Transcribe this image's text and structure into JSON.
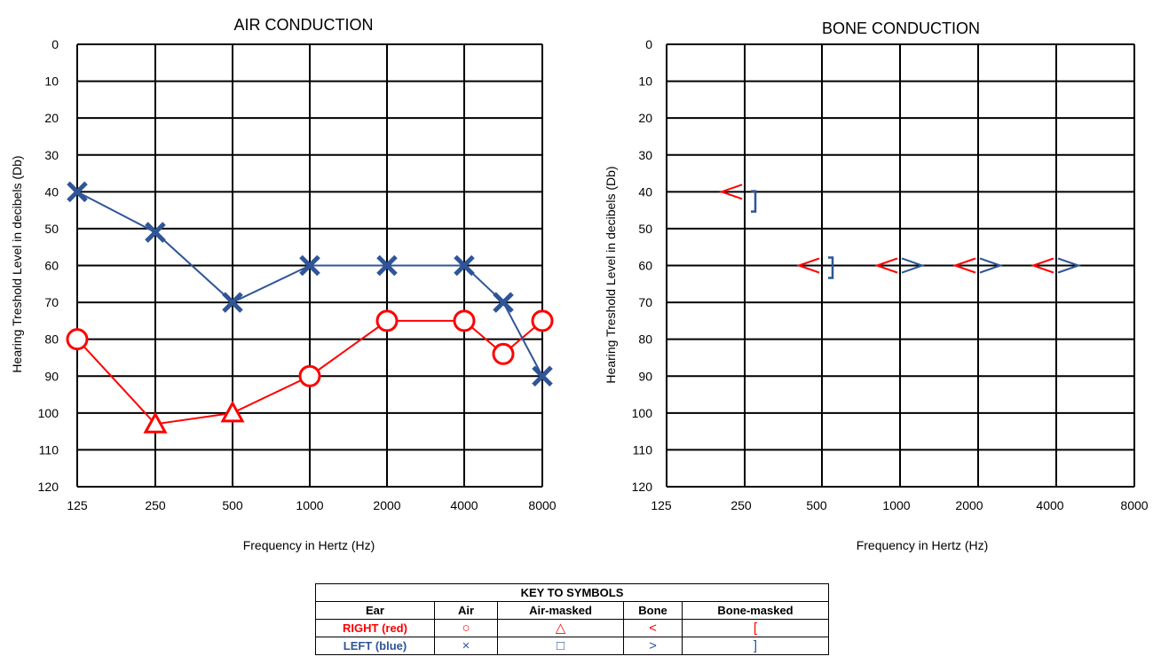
{
  "chart_data": [
    {
      "type": "line",
      "title": "AIR CONDUCTION",
      "xlabel": "Frequency in Hertz (Hz)",
      "ylabel": "Hearing Treshold Level in decibels (Db)",
      "x_categories": [
        "125",
        "250",
        "500",
        "1000",
        "2000",
        "4000",
        "8000"
      ],
      "ylim": [
        0,
        120
      ],
      "y_inverted": true,
      "y_ticks": [
        "0",
        "10",
        "20",
        "30",
        "40",
        "50",
        "60",
        "70",
        "80",
        "90",
        "100",
        "110",
        "120"
      ],
      "grid": true,
      "series": [
        {
          "color": "#ff0000",
          "points": [
            {
              "x": 0,
              "y": 80,
              "symbol": "circle"
            },
            {
              "x": 1,
              "y": 103,
              "symbol": "triangle"
            },
            {
              "x": 2,
              "y": 100,
              "symbol": "triangle"
            },
            {
              "x": 3,
              "y": 90,
              "symbol": "circle"
            },
            {
              "x": 4,
              "y": 75,
              "symbol": "circle"
            },
            {
              "x": 5,
              "y": 75,
              "symbol": "circle"
            },
            {
              "x": 5.5,
              "y": 84,
              "symbol": "circle"
            },
            {
              "x": 6,
              "y": 75,
              "symbol": "circle"
            }
          ]
        },
        {
          "color": "#2f5597",
          "points": [
            {
              "x": 0,
              "y": 40,
              "symbol": "x"
            },
            {
              "x": 1,
              "y": 51,
              "symbol": "x"
            },
            {
              "x": 2,
              "y": 70,
              "symbol": "x"
            },
            {
              "x": 3,
              "y": 60,
              "symbol": "x"
            },
            {
              "x": 4,
              "y": 60,
              "symbol": "x"
            },
            {
              "x": 5,
              "y": 60,
              "symbol": "x"
            },
            {
              "x": 5.5,
              "y": 70,
              "symbol": "x"
            },
            {
              "x": 6,
              "y": 90,
              "symbol": "x"
            }
          ]
        }
      ]
    },
    {
      "type": "scatter",
      "title": "BONE CONDUCTION",
      "xlabel": "Frequency in Hertz (Hz)",
      "ylabel": "Hearing Treshold Level in decibels (Db)",
      "x_categories": [
        "125",
        "250",
        "500",
        "1000",
        "2000",
        "4000",
        "8000"
      ],
      "ylim": [
        0,
        120
      ],
      "y_inverted": true,
      "y_ticks": [
        "0",
        "10",
        "20",
        "30",
        "40",
        "50",
        "60",
        "70",
        "80",
        "90",
        "100",
        "110",
        "120"
      ],
      "grid": true,
      "markers": [
        {
          "x": 1,
          "y": 40,
          "symbol": "<",
          "ear": "right"
        },
        {
          "x": 1,
          "y": 42,
          "symbol": "]",
          "ear": "left"
        },
        {
          "x": 2,
          "y": 60,
          "symbol": "<",
          "ear": "right"
        },
        {
          "x": 2,
          "y": 60,
          "symbol": "]",
          "ear": "left"
        },
        {
          "x": 3,
          "y": 60,
          "symbol": "<",
          "ear": "right"
        },
        {
          "x": 3,
          "y": 60,
          "symbol": ">",
          "ear": "left"
        },
        {
          "x": 4,
          "y": 60,
          "symbol": "<",
          "ear": "right"
        },
        {
          "x": 4,
          "y": 60,
          "symbol": ">",
          "ear": "left"
        },
        {
          "x": 5,
          "y": 60,
          "symbol": "<",
          "ear": "right"
        },
        {
          "x": 5,
          "y": 60,
          "symbol": ">",
          "ear": "left"
        }
      ]
    }
  ],
  "key": {
    "title": "KEY TO SYMBOLS",
    "headers": [
      "Ear",
      "Air",
      "Air-masked",
      "Bone",
      "Bone-masked"
    ],
    "rows": [
      {
        "ear": "RIGHT (red)",
        "air": "○",
        "air_masked": "△",
        "bone": "<",
        "bone_masked": "["
      },
      {
        "ear": "LEFT (blue)",
        "air": "×",
        "air_masked": "□",
        "bone": ">",
        "bone_masked": "]"
      }
    ]
  },
  "colors": {
    "right": "#ff0000",
    "left": "#2f5597"
  }
}
